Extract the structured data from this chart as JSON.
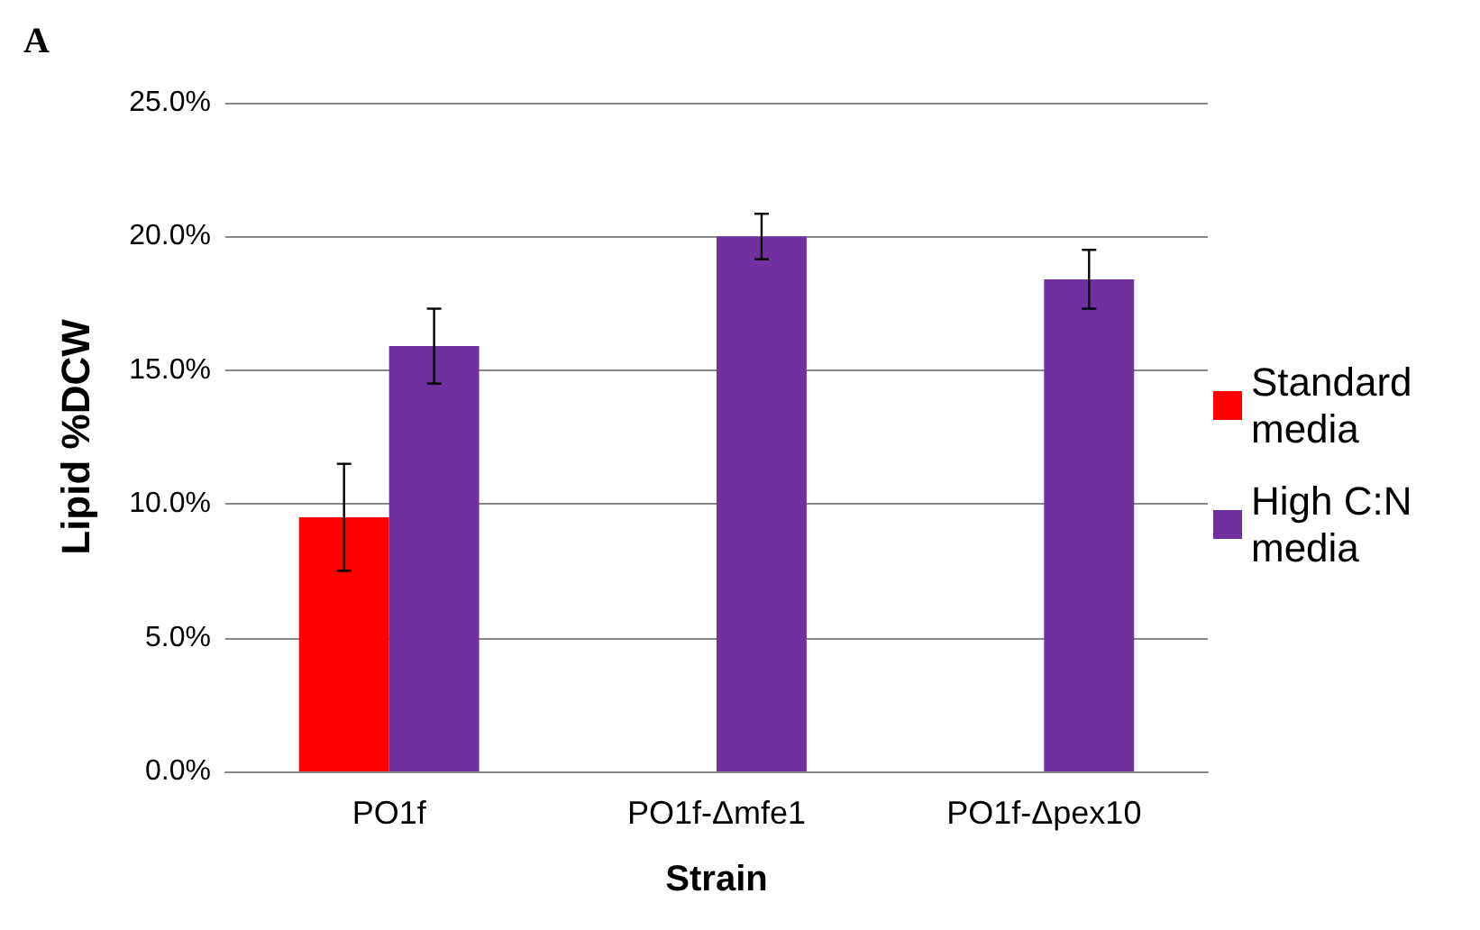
{
  "chart_data": {
    "type": "bar",
    "title": "A",
    "xlabel": "Strain",
    "ylabel": "Lipid %DCW",
    "categories": [
      "PO1f",
      "PO1f-Δmfe1",
      "PO1f-Δpex10"
    ],
    "series": [
      {
        "name": "Standard media",
        "color": "#ff0000",
        "values": [
          9.5,
          null,
          null
        ],
        "errors": [
          2.0,
          null,
          null
        ]
      },
      {
        "name": "High C:N media",
        "color": "#7030a0",
        "values": [
          15.9,
          20.0,
          18.4
        ],
        "errors": [
          1.4,
          0.85,
          1.1
        ]
      }
    ],
    "ylim": [
      0,
      25
    ],
    "yticks": [
      {
        "value": 0,
        "label": "0.0%"
      },
      {
        "value": 5,
        "label": "5.0%"
      },
      {
        "value": 10,
        "label": "10.0%"
      },
      {
        "value": 15,
        "label": "15.0%"
      },
      {
        "value": 20,
        "label": "20.0%"
      },
      {
        "value": 25,
        "label": "25.0%"
      }
    ],
    "grid": "y",
    "legend": "right"
  }
}
